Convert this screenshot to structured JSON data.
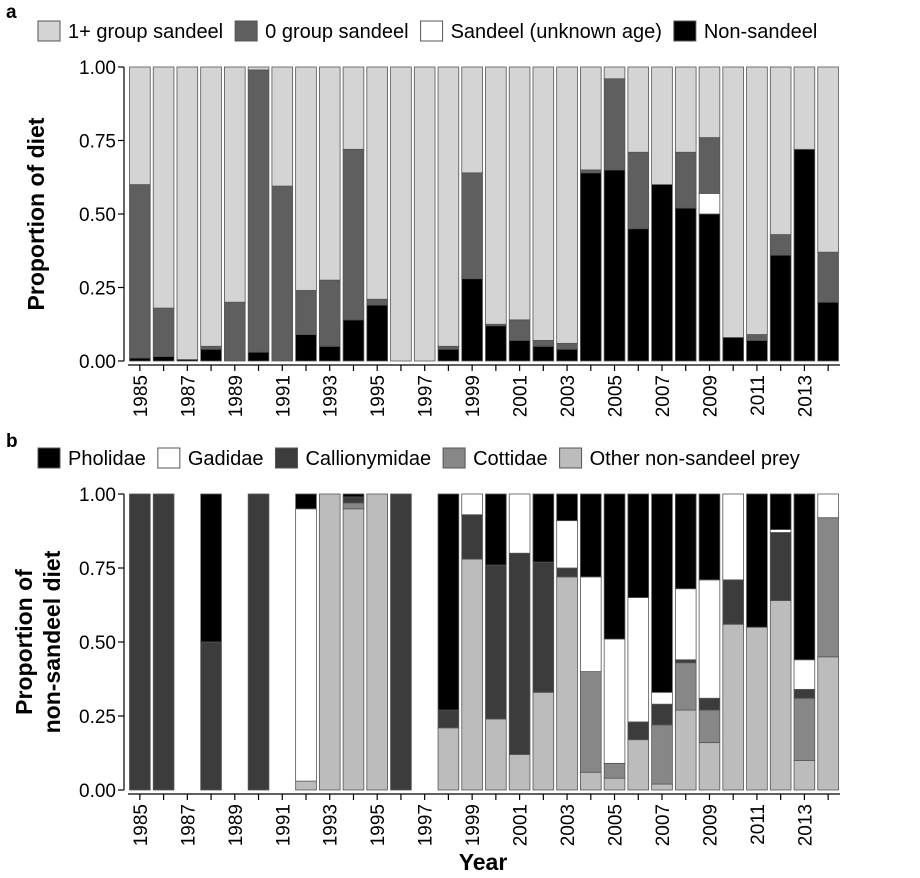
{
  "xlabel": "Year",
  "chart_data": [
    {
      "panel": "a",
      "type": "bar",
      "stacked": true,
      "ylabel": "Proportion of diet",
      "ylim": [
        0,
        1
      ],
      "yticks": [
        "0.00",
        "0.25",
        "0.50",
        "0.75",
        "1.00"
      ],
      "years": [
        1985,
        1986,
        1987,
        1988,
        1989,
        1990,
        1991,
        1992,
        1993,
        1994,
        1995,
        1996,
        1997,
        1998,
        1999,
        2000,
        2001,
        2002,
        2003,
        2004,
        2005,
        2006,
        2007,
        2008,
        2009,
        2010,
        2011,
        2012,
        2013,
        2014
      ],
      "xtick_labels": [
        "1985",
        "1987",
        "1989",
        "1991",
        "1993",
        "1995",
        "1997",
        "1999",
        "2001",
        "2003",
        "2005",
        "2007",
        "2009",
        "2011",
        "2013"
      ],
      "legend_position": "top",
      "series": [
        {
          "name": "Non-sandeel",
          "color": "#000000",
          "values": [
            0.01,
            0.015,
            0.005,
            0.04,
            0,
            0.03,
            0,
            0.09,
            0.05,
            0.14,
            0.19,
            0,
            0,
            0.04,
            0.28,
            0.12,
            0.07,
            0.05,
            0.04,
            0.64,
            0.65,
            0.45,
            0.6,
            0.52,
            0.5,
            0.08,
            0.07,
            0.36,
            0.72,
            0.2
          ]
        },
        {
          "name": "Sandeel (unknown age)",
          "color": "#ffffff",
          "values": [
            0,
            0,
            0,
            0,
            0,
            0,
            0,
            0,
            0,
            0,
            0,
            0,
            0,
            0,
            0,
            0,
            0,
            0,
            0,
            0,
            0,
            0,
            0,
            0,
            0.07,
            0,
            0,
            0,
            0,
            0
          ]
        },
        {
          "name": "0 group sandeel",
          "color": "#5f5f5f",
          "values": [
            0.59,
            0.165,
            0,
            0.01,
            0.2,
            0.96,
            0.595,
            0.15,
            0.225,
            0.58,
            0.02,
            0,
            0,
            0.01,
            0.36,
            0.005,
            0.07,
            0.02,
            0.02,
            0.01,
            0.31,
            0.26,
            0,
            0.19,
            0.19,
            0,
            0.02,
            0.07,
            0,
            0.17
          ]
        },
        {
          "name": "1+ group sandeel",
          "color": "#d4d4d4",
          "values": [
            0.4,
            0.82,
            0.995,
            0.95,
            0.8,
            0.01,
            0.405,
            0.76,
            0.725,
            0.28,
            0.79,
            1,
            1,
            0.95,
            0.36,
            0.875,
            0.86,
            0.93,
            0.94,
            0.35,
            0.04,
            0.29,
            0.4,
            0.29,
            0.24,
            0.92,
            0.91,
            0.57,
            0.28,
            0.63
          ]
        }
      ],
      "legend_order": [
        "1+ group sandeel",
        "0 group sandeel",
        "Sandeel (unknown age)",
        "Non-sandeel"
      ]
    },
    {
      "panel": "b",
      "type": "bar",
      "stacked": true,
      "ylabel_lines": [
        "Proportion of",
        "non-sandeel diet"
      ],
      "ylim": [
        0,
        1
      ],
      "yticks": [
        "0.00",
        "0.25",
        "0.50",
        "0.75",
        "1.00"
      ],
      "years": [
        1985,
        1986,
        1987,
        1988,
        1989,
        1990,
        1991,
        1992,
        1993,
        1994,
        1995,
        1996,
        1997,
        1998,
        1999,
        2000,
        2001,
        2002,
        2003,
        2004,
        2005,
        2006,
        2007,
        2008,
        2009,
        2010,
        2011,
        2012,
        2013,
        2014
      ],
      "xtick_labels": [
        "1985",
        "1987",
        "1989",
        "1991",
        "1993",
        "1995",
        "1997",
        "1999",
        "2001",
        "2003",
        "2005",
        "2007",
        "2009",
        "2011",
        "2013"
      ],
      "legend_position": "top",
      "series": [
        {
          "name": "Other non-sandeel prey",
          "color": "#bcbcbc",
          "values": [
            0,
            0,
            0,
            0,
            0,
            0,
            0,
            0.03,
            1,
            0.95,
            1,
            0,
            0,
            0.21,
            0.78,
            0.24,
            0.12,
            0.33,
            0.72,
            0.06,
            0.04,
            0.17,
            0.02,
            0.27,
            0.16,
            0.56,
            0.55,
            0.64,
            0.1,
            0.45
          ]
        },
        {
          "name": "Cottidae",
          "color": "#878787",
          "values": [
            0,
            0,
            0,
            0,
            0,
            0,
            0,
            0,
            0,
            0.02,
            0,
            0,
            0,
            0,
            0,
            0,
            0,
            0,
            0,
            0.34,
            0.05,
            0,
            0.2,
            0.16,
            0.11,
            0,
            0,
            0,
            0.21,
            0.47
          ]
        },
        {
          "name": "Callionymidae",
          "color": "#3c3c3c",
          "values": [
            1,
            1,
            0,
            0.5,
            0,
            1,
            0,
            0,
            0,
            0.02,
            0,
            1,
            0,
            0.06,
            0.15,
            0.52,
            0.68,
            0.44,
            0.03,
            0,
            0,
            0.06,
            0.07,
            0.01,
            0.04,
            0.15,
            0,
            0.23,
            0.03,
            0
          ]
        },
        {
          "name": "Gadidae",
          "color": "#ffffff",
          "values": [
            0,
            0,
            0,
            0,
            0,
            0,
            0,
            0.92,
            0,
            0,
            0,
            0,
            0,
            0,
            0.07,
            0,
            0.2,
            0,
            0.16,
            0.32,
            0.42,
            0.42,
            0.04,
            0.24,
            0.4,
            0.29,
            0,
            0.01,
            0.1,
            0.08
          ]
        },
        {
          "name": "Pholidae",
          "color": "#000000",
          "values": [
            0,
            0,
            0,
            0.5,
            0,
            0,
            0,
            0.05,
            0,
            0.01,
            0,
            0,
            0,
            0.73,
            0,
            0.24,
            0,
            0.23,
            0.09,
            0.28,
            0.49,
            0.35,
            0.67,
            0.32,
            0.29,
            0,
            0.45,
            0.12,
            0.56,
            0
          ]
        }
      ],
      "legend_order": [
        "Pholidae",
        "Gadidae",
        "Callionymidae",
        "Cottidae",
        "Other non-sandeel prey"
      ]
    }
  ]
}
